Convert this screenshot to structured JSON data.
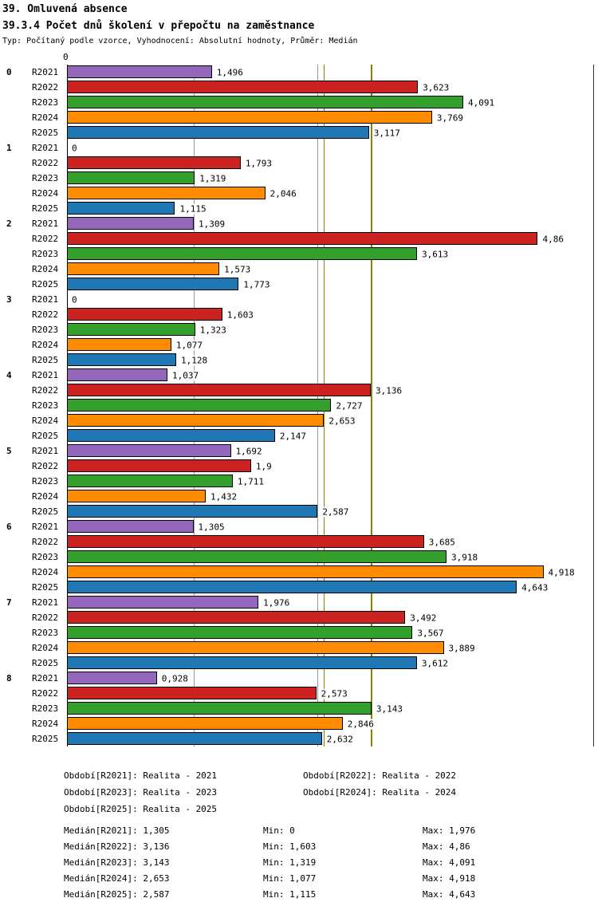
{
  "header": {
    "title": "39. Omluvená absence",
    "subtitle": "39.3.4 Počet dnů školení v přepočtu na zaměstnance",
    "meta": "Typ: Počítaný podle vzorce, Vyhodnocení: Absolutní hodnoty, Průměr: Medián"
  },
  "chart_data": {
    "type": "bar",
    "orientation": "horizontal",
    "value_axis": {
      "origin_label": "0",
      "min": 0,
      "max_displayed": 4.918
    },
    "groups": [
      "0",
      "1",
      "2",
      "3",
      "4",
      "5",
      "6",
      "7",
      "8"
    ],
    "series": [
      {
        "name": "R2021",
        "color": "#9467bd",
        "median": 1.305,
        "values": [
          1.496,
          0,
          1.309,
          0,
          1.037,
          1.692,
          1.305,
          1.976,
          0.928
        ],
        "labels": [
          "1,496",
          "0",
          "1,309",
          "0",
          "1,037",
          "1,692",
          "1,305",
          "1,976",
          "0,928"
        ]
      },
      {
        "name": "R2022",
        "color": "#cc2222",
        "median": 3.136,
        "values": [
          3.623,
          1.793,
          4.86,
          1.603,
          3.136,
          1.9,
          3.685,
          3.492,
          2.573
        ],
        "labels": [
          "3,623",
          "1,793",
          "4,86",
          "1,603",
          "3,136",
          "1,9",
          "3,685",
          "3,492",
          "2,573"
        ]
      },
      {
        "name": "R2023",
        "color": "#33a02c",
        "median": 3.143,
        "values": [
          4.091,
          1.319,
          3.613,
          1.323,
          2.727,
          1.711,
          3.918,
          3.567,
          3.143
        ],
        "labels": [
          "4,091",
          "1,319",
          "3,613",
          "1,323",
          "2,727",
          "1,711",
          "3,918",
          "3,567",
          "3,143"
        ]
      },
      {
        "name": "R2024",
        "color": "#ff8c00",
        "median": 2.653,
        "values": [
          3.769,
          2.046,
          1.573,
          1.077,
          2.653,
          1.432,
          4.918,
          3.889,
          2.846
        ],
        "labels": [
          "3,769",
          "2,046",
          "1,573",
          "1,077",
          "2,653",
          "1,432",
          "4,918",
          "3,889",
          "2,846"
        ]
      },
      {
        "name": "R2025",
        "color": "#1f77b4",
        "median": 2.587,
        "values": [
          3.117,
          1.115,
          1.773,
          1.128,
          2.147,
          2.587,
          4.643,
          3.612,
          2.632
        ],
        "labels": [
          "3,117",
          "1,115",
          "1,773",
          "1,128",
          "2,147",
          "2,587",
          "4,643",
          "3,612",
          "2,632"
        ]
      }
    ],
    "median_lines": [
      {
        "series": "R2021",
        "value": 1.305,
        "color": "#999999"
      },
      {
        "series": "R2025",
        "value": 2.587,
        "color": "#999999"
      },
      {
        "series": "R2024",
        "value": 2.653,
        "color": "#8b8000"
      },
      {
        "series": "R2022",
        "value": 3.136,
        "color": "#8b8000"
      },
      {
        "series": "R2023",
        "value": 3.143,
        "color": "#8b8000"
      }
    ]
  },
  "legend": {
    "items": [
      "Období[R2021]: Realita - 2021",
      "Období[R2022]: Realita - 2022",
      "Období[R2023]: Realita - 2023",
      "Období[R2024]: Realita - 2024",
      "Období[R2025]: Realita - 2025"
    ]
  },
  "stats": {
    "rows": [
      {
        "median": "Medián[R2021]: 1,305",
        "min": "Min: 0",
        "max": "Max: 1,976"
      },
      {
        "median": "Medián[R2022]: 3,136",
        "min": "Min: 1,603",
        "max": "Max: 4,86"
      },
      {
        "median": "Medián[R2023]: 3,143",
        "min": "Min: 1,319",
        "max": "Max: 4,091"
      },
      {
        "median": "Medián[R2024]: 2,653",
        "min": "Min: 1,077",
        "max": "Max: 4,918"
      },
      {
        "median": "Medián[R2025]: 2,587",
        "min": "Min: 1,115",
        "max": "Max: 4,643"
      }
    ]
  }
}
